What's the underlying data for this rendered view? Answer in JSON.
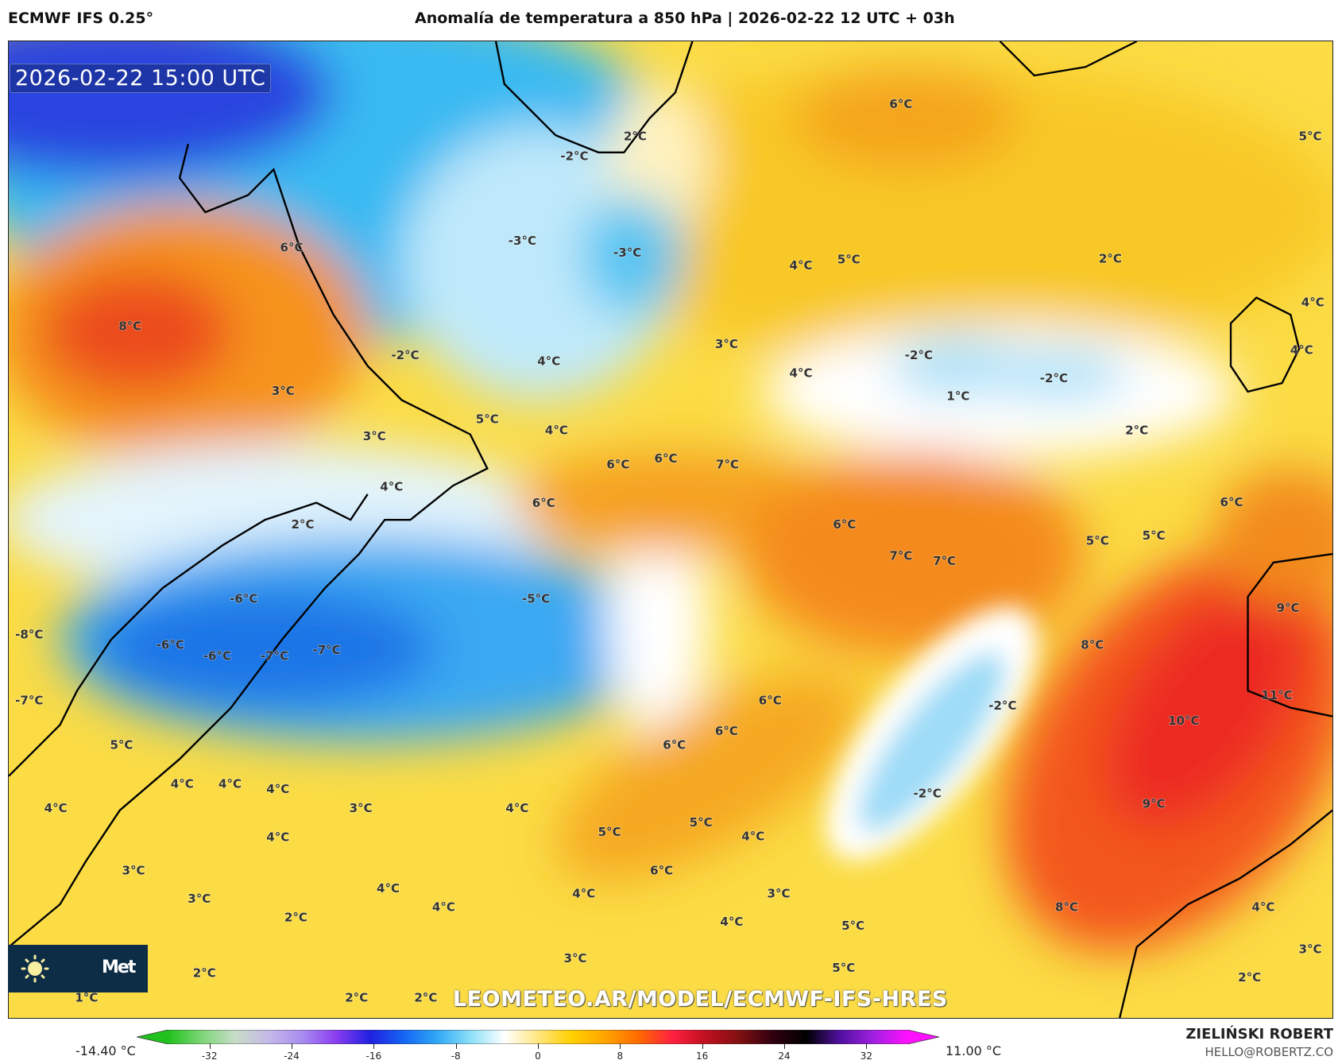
{
  "header": {
    "model": "ECMWF IFS 0.25°",
    "title": "Anomalía de temperatura a 850 hPa | 2026-02-22 12 UTC + 03h"
  },
  "map": {
    "valid_time": "2026-02-22 15:00 UTC",
    "watermark": "LEOMETEO.AR/MODEL/ECMWF-IFS-HRES",
    "logo": {
      "icon": "sun-icon",
      "text": "Met"
    },
    "labels": [
      "6°C",
      "5°C",
      "2°C",
      "-2°C",
      "6°C",
      "-3°C",
      "-3°C",
      "4°C",
      "5°C",
      "2°C",
      "4°C",
      "8°C",
      "-2°C",
      "4°C",
      "3°C",
      "4°C",
      "-2°C",
      "-2°C",
      "4°C",
      "3°C",
      "1°C",
      "5°C",
      "4°C",
      "3°C",
      "2°C",
      "6°C",
      "6°C",
      "7°C",
      "4°C",
      "6°C",
      "6°C",
      "2°C",
      "6°C",
      "5°C",
      "5°C",
      "7°C",
      "7°C",
      "-6°C",
      "-5°C",
      "9°C",
      "-8°C",
      "-6°C",
      "-6°C",
      "-7°C",
      "-7°C",
      "8°C",
      "-7°C",
      "6°C",
      "11°C",
      "-2°C",
      "10°C",
      "6°C",
      "6°C",
      "5°C",
      "4°C",
      "4°C",
      "4°C",
      "4°C",
      "3°C",
      "4°C",
      "-2°C",
      "9°C",
      "5°C",
      "5°C",
      "4°C",
      "4°C",
      "3°C",
      "6°C",
      "4°C",
      "4°C",
      "4°C",
      "3°C",
      "3°C",
      "2°C",
      "4°C",
      "5°C",
      "8°C",
      "4°C",
      "3°C",
      "3°C",
      "2°C",
      "5°C",
      "2°C",
      "1°C",
      "2°C",
      "2°C"
    ]
  },
  "colorbar": {
    "min_label": "-14.40 °C",
    "max_label": "11.00 °C",
    "ticks": [
      "-32",
      "-24",
      "-16",
      "-8",
      "0",
      "8",
      "16",
      "24",
      "32"
    ],
    "range": [
      -36,
      36
    ],
    "colors": [
      "#22c21e",
      "#7fd67a",
      "#c9dcc9",
      "#c4b8e8",
      "#a78bf0",
      "#8a3cf0",
      "#2020e0",
      "#1565f5",
      "#30a8f5",
      "#8de0f8",
      "#ffffff",
      "#ffe680",
      "#ffd000",
      "#ffa500",
      "#ff6a00",
      "#ff2040",
      "#c01020",
      "#801010",
      "#300010",
      "#000000",
      "#5010a0",
      "#a020e0",
      "#ff10ff"
    ]
  },
  "footer": {
    "author": "ZIELIŃSKI ROBERT",
    "email": "HELLO@ROBERTZ.CO"
  }
}
